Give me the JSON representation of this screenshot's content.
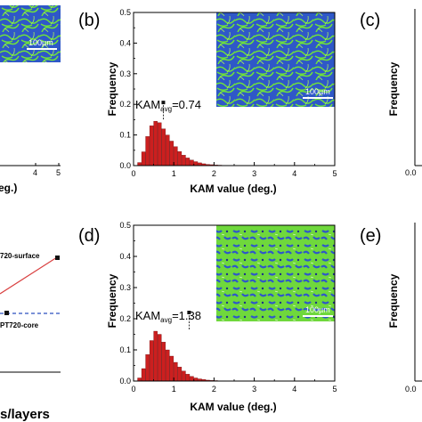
{
  "panels": [
    {
      "label": "(b)",
      "scale_bar": "100µm",
      "kam_prefix": "KAM",
      "kam_sub": "avg",
      "kam_value": "=0.74"
    },
    {
      "label": "(d)",
      "scale_bar": "100µm",
      "kam_prefix": "KAM",
      "kam_sub": "avg",
      "kam_value": "=1.38"
    }
  ],
  "partial": {
    "left_top_xlabel": "eg.)",
    "left_top_scale": "100µm",
    "left_top_ticks": [
      "4",
      "5"
    ],
    "left_bottom_xlabel": "s/layers",
    "left_bottom_series": [
      "720-surface",
      "PT720-core"
    ],
    "right_top_label": "(c)",
    "right_bottom_label": "(e)",
    "right_ylabel": "Frequency",
    "right_top_tick": "0.0",
    "right_bottom_tick": "0.0"
  },
  "chart_data": [
    {
      "type": "bar",
      "title": "",
      "xlabel": "KAM value (deg.)",
      "ylabel": "Frequency",
      "xlim": [
        0,
        5
      ],
      "ylim": [
        0,
        0.5
      ],
      "xticks": [
        "0",
        "1",
        "2",
        "3",
        "4",
        "5"
      ],
      "yticks": [
        "0.0",
        "0.1",
        "0.2",
        "0.3",
        "0.4",
        "0.5"
      ],
      "bin_width": 0.1,
      "x": [
        0.1,
        0.2,
        0.3,
        0.4,
        0.5,
        0.6,
        0.7,
        0.8,
        0.9,
        1.0,
        1.1,
        1.2,
        1.3,
        1.4,
        1.5,
        1.6,
        1.7,
        1.8,
        1.9,
        2.0,
        2.1,
        2.2,
        2.3
      ],
      "values": [
        0.001,
        0.01,
        0.045,
        0.095,
        0.13,
        0.145,
        0.14,
        0.12,
        0.1,
        0.08,
        0.062,
        0.046,
        0.034,
        0.025,
        0.018,
        0.013,
        0.009,
        0.006,
        0.004,
        0.003,
        0.002,
        0.0015,
        0.001
      ],
      "marker_x": 0.74
    },
    {
      "type": "bar",
      "title": "",
      "xlabel": "KAM value (deg.)",
      "ylabel": "Frequency",
      "xlim": [
        0,
        5
      ],
      "ylim": [
        0,
        0.5
      ],
      "xticks": [
        "0",
        "1",
        "2",
        "3",
        "4",
        "5"
      ],
      "yticks": [
        "0.0",
        "0.1",
        "0.2",
        "0.3",
        "0.4",
        "0.5"
      ],
      "bin_width": 0.1,
      "x": [
        0.1,
        0.2,
        0.3,
        0.4,
        0.5,
        0.6,
        0.7,
        0.8,
        0.9,
        1.0,
        1.1,
        1.2,
        1.3,
        1.4,
        1.5,
        1.6,
        1.7,
        1.8,
        1.9,
        2.0,
        2.1,
        2.2,
        2.3
      ],
      "values": [
        0.001,
        0.01,
        0.04,
        0.085,
        0.13,
        0.16,
        0.15,
        0.125,
        0.1,
        0.08,
        0.06,
        0.045,
        0.032,
        0.022,
        0.015,
        0.01,
        0.007,
        0.005,
        0.003,
        0.002,
        0.0015,
        0.001,
        0.001
      ],
      "marker_x": 1.38
    }
  ],
  "colors": {
    "bar_fill": "#cc1f1f",
    "bar_stroke": "#5a0000",
    "map_blue": "#2f58c8",
    "map_green": "#6fe23a",
    "line_red": "#d94040",
    "line_blue": "#2b4fbf"
  }
}
